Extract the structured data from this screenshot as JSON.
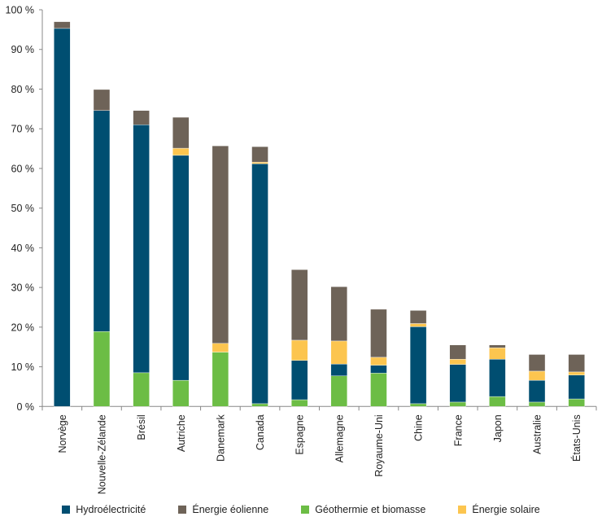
{
  "chart_data": {
    "type": "bar",
    "stacked": true,
    "title": "",
    "xlabel": "",
    "ylabel": "",
    "ylim": [
      0,
      100
    ],
    "yticks": [
      "0 %",
      "10 %",
      "20 %",
      "30 %",
      "40 %",
      "50 %",
      "60 %",
      "70 %",
      "80 %",
      "90 %",
      "100 %"
    ],
    "grid": false,
    "legend_position": "bottom",
    "categories": [
      "Norvège",
      "Nouvelle-Zélande",
      "Brésil",
      "Autriche",
      "Danemark",
      "Canada",
      "Espagne",
      "Allemagne",
      "Royaume-Uni",
      "Chine",
      "France",
      "Japon",
      "Australie",
      "États-Unis"
    ],
    "series": [
      {
        "name": "Géothermie et biomasse",
        "color": "#6cbd45",
        "values": [
          0,
          18.9,
          8.5,
          6.6,
          13.7,
          0.7,
          1.7,
          7.7,
          8.4,
          0.7,
          1.1,
          2.5,
          1.1,
          1.9
        ]
      },
      {
        "name": "Hydroélectricité",
        "color": "#004e71",
        "values": [
          95.3,
          55.7,
          62.5,
          56.7,
          0,
          60.5,
          9.9,
          3.0,
          2.0,
          19.4,
          9.5,
          9.4,
          5.5,
          6.0
        ]
      },
      {
        "name": "Énergie solaire",
        "color": "#fcc54f",
        "values": [
          0,
          0,
          0,
          1.8,
          2.2,
          0.4,
          5.1,
          5.8,
          2.0,
          0.8,
          1.3,
          2.9,
          2.3,
          0.8
        ]
      },
      {
        "name": "Énergie éolienne",
        "color": "#6e6358",
        "values": [
          1.7,
          5.3,
          3.6,
          7.8,
          49.8,
          3.9,
          17.8,
          13.7,
          12.1,
          3.3,
          3.6,
          0.7,
          4.2,
          4.4
        ]
      }
    ],
    "legend_order": [
      "Hydroélectricité",
      "Énergie éolienne",
      "Géothermie et biomasse",
      "Énergie solaire"
    ]
  }
}
